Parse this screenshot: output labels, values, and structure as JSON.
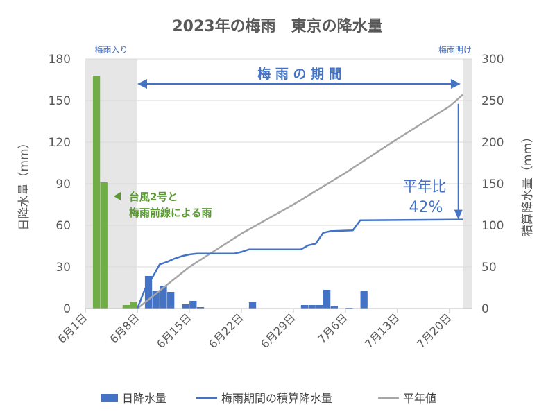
{
  "chart_data": {
    "type": "bar+line",
    "title": "2023年の梅雨　東京の降水量",
    "ylabel_left": "日降水量（mm）",
    "ylabel_right": "積算降水量（mm）",
    "ylim_left": [
      0,
      180
    ],
    "yticks_left": [
      "0",
      "30",
      "60",
      "90",
      "120",
      "150",
      "180"
    ],
    "ylim_right": [
      0,
      300
    ],
    "yticks_right": [
      "0",
      "50",
      "100",
      "150",
      "200",
      "250",
      "300"
    ],
    "xlim_days": [
      0,
      52
    ],
    "xticks": [
      {
        "day": 0,
        "label": "6月1日"
      },
      {
        "day": 7,
        "label": "6月8日"
      },
      {
        "day": 14,
        "label": "6月15日"
      },
      {
        "day": 21,
        "label": "6月22日"
      },
      {
        "day": 28,
        "label": "6月29日"
      },
      {
        "day": 35,
        "label": "7月6日"
      },
      {
        "day": 42,
        "label": "7月13日"
      },
      {
        "day": 49,
        "label": "7月20日"
      }
    ],
    "grid": "horizontal",
    "legend_position": "bottom",
    "colors": {
      "typhoon_bar": "#70ad47",
      "daily_bar": "#4472c4",
      "cumulative_line": "#4472c4",
      "normal_line": "#a5a5a5",
      "shade": "#e6e6e6",
      "typhoon_text": "#5a9a32",
      "arrow": "#4472c4",
      "grid": "#d9d9d9"
    },
    "shaded_regions": [
      {
        "from_day": 0,
        "to_day": 7,
        "label": "梅雨入り"
      },
      {
        "from_day": 50.8,
        "to_day": 52,
        "label": "梅雨明け"
      }
    ],
    "series": [
      {
        "name": "日降水量",
        "type": "bar",
        "axis": "left",
        "points": [
          {
            "day": 1,
            "value": 168,
            "highlight": true
          },
          {
            "day": 2,
            "value": 91,
            "highlight": true
          },
          {
            "day": 5,
            "value": 2.5,
            "highlight": true
          },
          {
            "day": 6,
            "value": 5,
            "highlight": true
          },
          {
            "day": 8,
            "value": 23.5
          },
          {
            "day": 9,
            "value": 13
          },
          {
            "day": 10,
            "value": 16.5
          },
          {
            "day": 11,
            "value": 12
          },
          {
            "day": 13,
            "value": 3
          },
          {
            "day": 14,
            "value": 5.5
          },
          {
            "day": 15,
            "value": 1
          },
          {
            "day": 22,
            "value": 4.5
          },
          {
            "day": 29,
            "value": 2.5
          },
          {
            "day": 30,
            "value": 2.5
          },
          {
            "day": 31,
            "value": 2.5
          },
          {
            "day": 32,
            "value": 13.5
          },
          {
            "day": 33,
            "value": 2
          },
          {
            "day": 35,
            "value": 0.5
          },
          {
            "day": 37,
            "value": 12.5
          }
        ]
      },
      {
        "name": "梅雨期間の積算降水量",
        "type": "line",
        "axis": "right",
        "points": [
          [
            7,
            0
          ],
          [
            8,
            23
          ],
          [
            9,
            37
          ],
          [
            10,
            53
          ],
          [
            11,
            56
          ],
          [
            12,
            60
          ],
          [
            13,
            63
          ],
          [
            14,
            65
          ],
          [
            15,
            66
          ],
          [
            16,
            66
          ],
          [
            20,
            66
          ],
          [
            21,
            68
          ],
          [
            22,
            71
          ],
          [
            29,
            71
          ],
          [
            30,
            76
          ],
          [
            31,
            78
          ],
          [
            32,
            91
          ],
          [
            33,
            93
          ],
          [
            36,
            94
          ],
          [
            37,
            106
          ],
          [
            50.8,
            107
          ]
        ]
      },
      {
        "name": "平年値",
        "type": "line",
        "axis": "right",
        "points": [
          [
            7,
            0
          ],
          [
            14,
            50
          ],
          [
            21,
            90
          ],
          [
            28,
            125
          ],
          [
            35,
            163
          ],
          [
            42,
            204
          ],
          [
            49,
            243
          ],
          [
            50.8,
            257
          ]
        ]
      }
    ],
    "annotations": {
      "period_label": "梅 雨 の 期 間",
      "typhoon_label_line1": "台風2号と",
      "typhoon_label_line2": "梅雨前線による雨",
      "ratio_label_line1": "平年比",
      "ratio_label_line2": "42%",
      "ratio_percent": 42
    }
  },
  "legend": [
    {
      "key": "daily",
      "label": "日降水量",
      "icon": "blue-bar-swatch"
    },
    {
      "key": "cumulative",
      "label": "梅雨期間の積算降水量",
      "icon": "blue-line-swatch"
    },
    {
      "key": "normal",
      "label": "平年値",
      "icon": "gray-line-swatch"
    }
  ]
}
